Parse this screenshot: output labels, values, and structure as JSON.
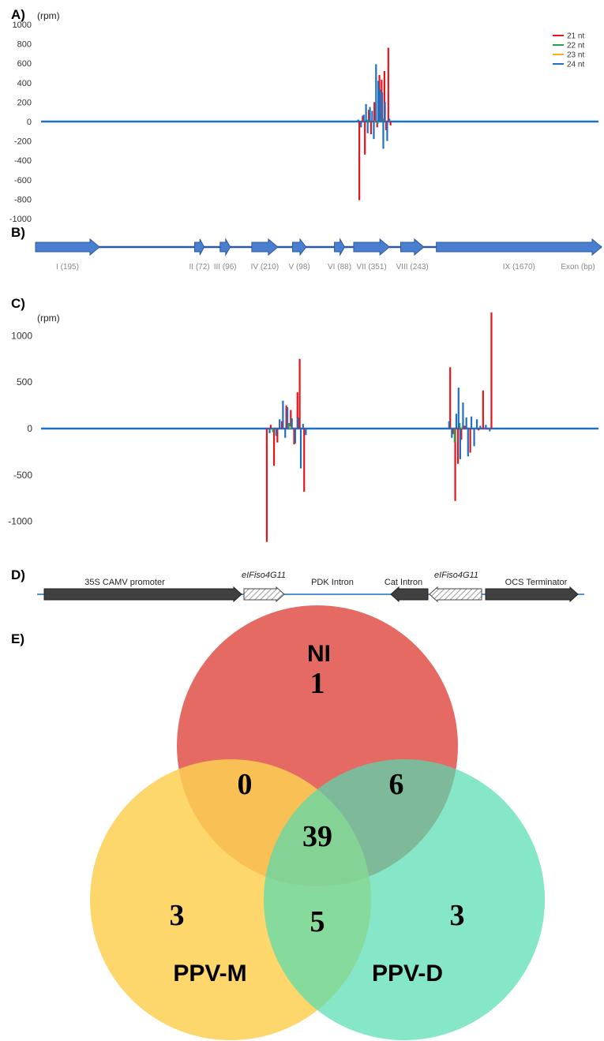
{
  "panel_labels": {
    "a": "A)",
    "b": "B)",
    "c": "C)",
    "d": "D)",
    "e": "E)"
  },
  "colors": {
    "nt21": "#e8141b",
    "nt22": "#22a34a",
    "nt23": "#f2b21c",
    "nt24": "#1f6fc2",
    "exon": "#4a7fd0",
    "exon_edge": "#2c5aa0",
    "baseline": "#1f6fc2",
    "construct_dark": "#404040",
    "construct_hatch": "#b8b8b8",
    "venn_ni": "#e35d57",
    "venn_ppvm": "#fdcf52",
    "venn_ppvd": "#53dcb0"
  },
  "chart_data": [
    {
      "panel": "A",
      "type": "line",
      "ylabel": "(rpm)",
      "ylim": [
        -1000,
        1000
      ],
      "yticks": [
        1000,
        800,
        600,
        400,
        200,
        0,
        -200,
        -400,
        -600,
        -800,
        -1000
      ],
      "grid": false,
      "legend": "top-right",
      "series": [
        {
          "name": "21 nt",
          "color": "#e8141b",
          "spikes": [
            [
              0.571,
              -810
            ],
            [
              0.577,
              60
            ],
            [
              0.581,
              -340
            ],
            [
              0.588,
              120
            ],
            [
              0.592,
              -130
            ],
            [
              0.598,
              200
            ],
            [
              0.603,
              -60
            ],
            [
              0.607,
              480
            ],
            [
              0.611,
              430
            ],
            [
              0.616,
              520
            ],
            [
              0.619,
              -90
            ],
            [
              0.623,
              760
            ],
            [
              0.627,
              -40
            ]
          ]
        },
        {
          "name": "22 nt",
          "color": "#22a34a",
          "spikes": [
            [
              0.586,
              20
            ],
            [
              0.604,
              -25
            ],
            [
              0.613,
              30
            ]
          ]
        },
        {
          "name": "23 nt",
          "color": "#f2b21c",
          "spikes": [
            [
              0.6,
              10
            ]
          ]
        },
        {
          "name": "24 nt",
          "color": "#1f6fc2",
          "spikes": [
            [
              0.569,
              20
            ],
            [
              0.574,
              -60
            ],
            [
              0.579,
              70
            ],
            [
              0.583,
              180
            ],
            [
              0.586,
              -120
            ],
            [
              0.59,
              150
            ],
            [
              0.594,
              110
            ],
            [
              0.597,
              -180
            ],
            [
              0.601,
              590
            ],
            [
              0.605,
              420
            ],
            [
              0.608,
              330
            ],
            [
              0.612,
              300
            ],
            [
              0.614,
              -280
            ],
            [
              0.617,
              200
            ],
            [
              0.621,
              -200
            ],
            [
              0.625,
              30
            ]
          ]
        }
      ]
    },
    {
      "panel": "C",
      "type": "line",
      "ylabel": "(rpm)",
      "ylim": [
        -1300,
        1300
      ],
      "yticks": [
        1000,
        500,
        0,
        -500,
        -1000
      ],
      "grid": false,
      "series": [
        {
          "name": "21 nt",
          "color": "#e8141b",
          "spikes": [
            [
              0.405,
              -1220
            ],
            [
              0.412,
              40
            ],
            [
              0.418,
              -400
            ],
            [
              0.424,
              -150
            ],
            [
              0.432,
              80
            ],
            [
              0.44,
              250
            ],
            [
              0.448,
              200
            ],
            [
              0.454,
              -170
            ],
            [
              0.46,
              390
            ],
            [
              0.464,
              750
            ],
            [
              0.472,
              -680
            ],
            [
              0.734,
              660
            ],
            [
              0.739,
              -60
            ],
            [
              0.743,
              -780
            ],
            [
              0.748,
              -380
            ],
            [
              0.754,
              -120
            ],
            [
              0.76,
              30
            ],
            [
              0.77,
              -260
            ],
            [
              0.785,
              -20
            ],
            [
              0.793,
              410
            ],
            [
              0.8,
              -10
            ],
            [
              0.808,
              1250
            ]
          ]
        },
        {
          "name": "22 nt",
          "color": "#22a34a",
          "spikes": [
            [
              0.416,
              -40
            ],
            [
              0.445,
              60
            ],
            [
              0.742,
              -150
            ],
            [
              0.751,
              60
            ]
          ]
        },
        {
          "name": "23 nt",
          "color": "#f2b21c",
          "spikes": [
            [
              0.447,
              25
            ],
            [
              0.755,
              20
            ]
          ]
        },
        {
          "name": "24 nt",
          "color": "#1f6fc2",
          "spikes": [
            [
              0.41,
              -50
            ],
            [
              0.422,
              -80
            ],
            [
              0.428,
              100
            ],
            [
              0.434,
              300
            ],
            [
              0.438,
              -100
            ],
            [
              0.442,
              230
            ],
            [
              0.45,
              110
            ],
            [
              0.456,
              -160
            ],
            [
              0.461,
              120
            ],
            [
              0.466,
              -430
            ],
            [
              0.47,
              50
            ],
            [
              0.475,
              -70
            ],
            [
              0.732,
              80
            ],
            [
              0.737,
              -100
            ],
            [
              0.745,
              160
            ],
            [
              0.749,
              440
            ],
            [
              0.752,
              -330
            ],
            [
              0.757,
              280
            ],
            [
              0.763,
              120
            ],
            [
              0.766,
              -300
            ],
            [
              0.772,
              130
            ],
            [
              0.777,
              -190
            ],
            [
              0.782,
              100
            ],
            [
              0.788,
              30
            ],
            [
              0.798,
              40
            ],
            [
              0.805,
              -30
            ]
          ]
        }
      ]
    }
  ],
  "exon_map": {
    "exons": [
      {
        "label": "I (195)",
        "start": 0.0,
        "end": 0.113
      },
      {
        "label": "II (72)",
        "start": 0.281,
        "end": 0.298
      },
      {
        "label": "III (96)",
        "start": 0.326,
        "end": 0.344
      },
      {
        "label": "IV (210)",
        "start": 0.382,
        "end": 0.428
      },
      {
        "label": "V (98)",
        "start": 0.454,
        "end": 0.478
      },
      {
        "label": "VI (88)",
        "start": 0.528,
        "end": 0.546
      },
      {
        "label": "VII (351)",
        "start": 0.562,
        "end": 0.625
      },
      {
        "label": "VIII (243)",
        "start": 0.645,
        "end": 0.686
      },
      {
        "label": "IX (1670)",
        "start": 0.708,
        "end": 1.0
      }
    ],
    "unit_label": "Exon (bp)"
  },
  "construct": {
    "elements": [
      {
        "label": "35S CAMV  promoter",
        "style": "dark",
        "direction": "right",
        "italic": false
      },
      {
        "label": "eIFiso4G11",
        "style": "hatch",
        "direction": "right",
        "italic": true
      },
      {
        "label": "PDK Intron",
        "style": "none",
        "direction": "none",
        "italic": false
      },
      {
        "label": "Cat Intron",
        "style": "dark",
        "direction": "left",
        "italic": false
      },
      {
        "label": "eIFiso4G11",
        "style": "hatch",
        "direction": "left",
        "italic": true
      },
      {
        "label": "OCS Terminator",
        "style": "dark",
        "direction": "right",
        "italic": false
      }
    ]
  },
  "venn": {
    "sets": [
      {
        "name": "NI",
        "color": "#e35d57"
      },
      {
        "name": "PPV-M",
        "color": "#fdcf52"
      },
      {
        "name": "PPV-D",
        "color": "#53dcb0"
      }
    ],
    "regions": {
      "ni_only": "1",
      "ppvm_only": "3",
      "ppvd_only": "3",
      "ni_ppvm": "0",
      "ni_ppvd": "6",
      "ppvm_ppvd": "5",
      "all_three": "39"
    }
  }
}
